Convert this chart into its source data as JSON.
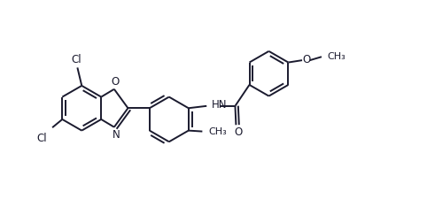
{
  "bg_color": "#ffffff",
  "line_color": "#1a1a2e",
  "line_width": 1.4,
  "figure_size": [
    4.82,
    2.25
  ],
  "dpi": 100,
  "font_size": 8.5,
  "xlim": [
    0,
    9.6
  ],
  "ylim": [
    0,
    4.5
  ]
}
